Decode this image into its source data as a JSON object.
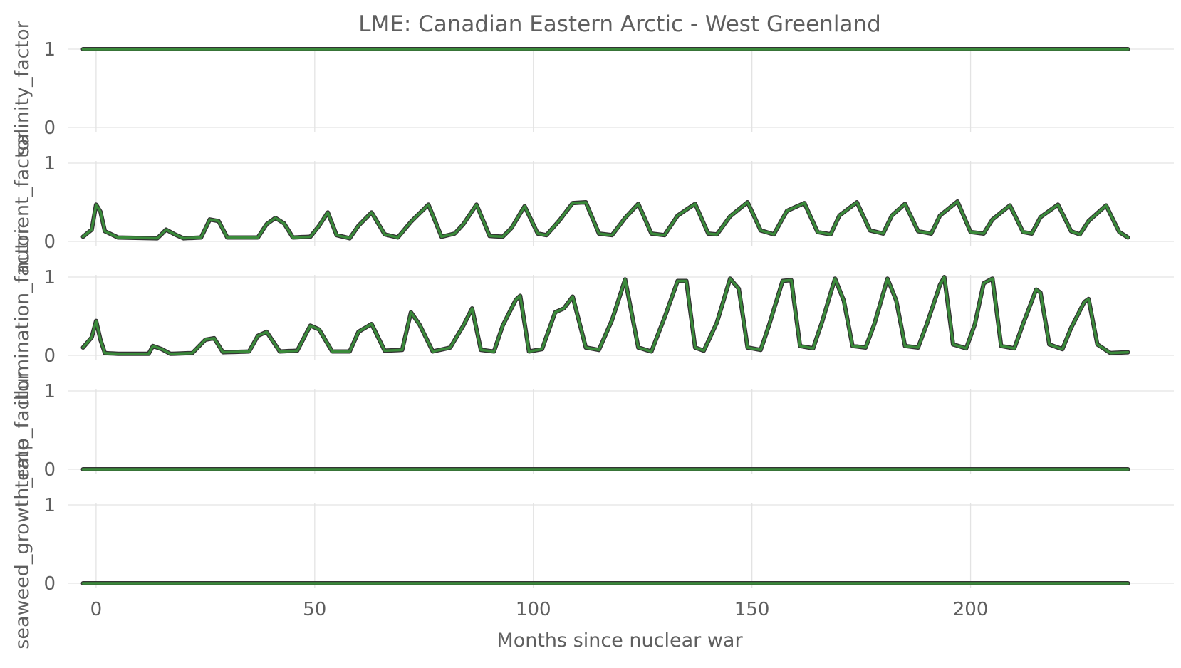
{
  "chart_data": {
    "type": "line",
    "title": "LME: Canadian Eastern Arctic - West Greenland",
    "xlabel": "Months since nuclear war",
    "x_start": -3,
    "x_end": 236,
    "xlim": [
      -6.5,
      246.5
    ],
    "x_ticks": [
      0,
      50,
      100,
      150,
      200
    ],
    "x_tick_labels": [
      "0",
      "50",
      "100",
      "150",
      "200"
    ],
    "grid": true,
    "line_color": "#3a8a3a",
    "outline_color": "#333333",
    "panels": [
      {
        "ylabel": "salinity_factor",
        "ylim": [
          0,
          1
        ],
        "y_ticks": [
          0,
          1
        ],
        "y_tick_labels": [
          "0",
          "1"
        ],
        "mode": "constant",
        "value": 1
      },
      {
        "ylabel": "nutrient_factor",
        "ylim": [
          0,
          1
        ],
        "y_ticks": [
          0,
          1
        ],
        "y_tick_labels": [
          "0",
          "1"
        ],
        "mode": "seasonal",
        "baseline": 0.03,
        "points": [
          [
            -3,
            0.06
          ],
          [
            -1,
            0.15
          ],
          [
            0,
            0.47
          ],
          [
            1,
            0.38
          ],
          [
            2,
            0.13
          ],
          [
            5,
            0.05
          ],
          [
            14,
            0.04
          ],
          [
            16,
            0.15
          ],
          [
            18,
            0.09
          ],
          [
            20,
            0.04
          ],
          [
            24,
            0.05
          ],
          [
            26,
            0.28
          ],
          [
            28,
            0.26
          ],
          [
            30,
            0.05
          ],
          [
            37,
            0.05
          ],
          [
            39,
            0.22
          ],
          [
            41,
            0.3
          ],
          [
            43,
            0.23
          ],
          [
            45,
            0.05
          ],
          [
            49,
            0.06
          ],
          [
            51,
            0.2
          ],
          [
            53,
            0.37
          ],
          [
            55,
            0.08
          ],
          [
            58,
            0.04
          ],
          [
            60,
            0.2
          ],
          [
            63,
            0.37
          ],
          [
            66,
            0.09
          ],
          [
            69,
            0.05
          ],
          [
            72,
            0.25
          ],
          [
            76,
            0.47
          ],
          [
            79,
            0.06
          ],
          [
            82,
            0.1
          ],
          [
            84,
            0.22
          ],
          [
            87,
            0.47
          ],
          [
            90,
            0.07
          ],
          [
            93,
            0.06
          ],
          [
            95,
            0.17
          ],
          [
            98,
            0.45
          ],
          [
            101,
            0.1
          ],
          [
            103,
            0.08
          ],
          [
            106,
            0.27
          ],
          [
            109,
            0.49
          ],
          [
            112,
            0.5
          ],
          [
            115,
            0.1
          ],
          [
            118,
            0.08
          ],
          [
            121,
            0.3
          ],
          [
            124,
            0.48
          ],
          [
            127,
            0.1
          ],
          [
            130,
            0.08
          ],
          [
            133,
            0.33
          ],
          [
            137,
            0.48
          ],
          [
            140,
            0.1
          ],
          [
            142,
            0.09
          ],
          [
            145,
            0.32
          ],
          [
            149,
            0.5
          ],
          [
            152,
            0.14
          ],
          [
            155,
            0.09
          ],
          [
            158,
            0.39
          ],
          [
            162,
            0.49
          ],
          [
            165,
            0.12
          ],
          [
            168,
            0.09
          ],
          [
            170,
            0.33
          ],
          [
            174,
            0.5
          ],
          [
            177,
            0.14
          ],
          [
            180,
            0.1
          ],
          [
            182,
            0.33
          ],
          [
            185,
            0.48
          ],
          [
            188,
            0.13
          ],
          [
            191,
            0.1
          ],
          [
            193,
            0.33
          ],
          [
            197,
            0.51
          ],
          [
            200,
            0.12
          ],
          [
            203,
            0.1
          ],
          [
            205,
            0.28
          ],
          [
            209,
            0.46
          ],
          [
            212,
            0.12
          ],
          [
            214,
            0.1
          ],
          [
            216,
            0.31
          ],
          [
            220,
            0.47
          ],
          [
            223,
            0.13
          ],
          [
            225,
            0.09
          ],
          [
            227,
            0.26
          ],
          [
            231,
            0.46
          ],
          [
            234,
            0.12
          ],
          [
            236,
            0.05
          ]
        ]
      },
      {
        "ylabel": "illumination_factor",
        "ylim": [
          0,
          1
        ],
        "y_ticks": [
          0,
          1
        ],
        "y_tick_labels": [
          "0",
          "1"
        ],
        "mode": "seasonal",
        "baseline": 0.01,
        "points": [
          [
            -3,
            0.1
          ],
          [
            -1,
            0.23
          ],
          [
            0,
            0.44
          ],
          [
            1,
            0.2
          ],
          [
            2,
            0.03
          ],
          [
            5,
            0.02
          ],
          [
            12,
            0.02
          ],
          [
            13,
            0.12
          ],
          [
            15,
            0.08
          ],
          [
            17,
            0.02
          ],
          [
            22,
            0.03
          ],
          [
            25,
            0.2
          ],
          [
            27,
            0.22
          ],
          [
            29,
            0.04
          ],
          [
            35,
            0.05
          ],
          [
            37,
            0.25
          ],
          [
            39,
            0.3
          ],
          [
            42,
            0.05
          ],
          [
            46,
            0.06
          ],
          [
            49,
            0.38
          ],
          [
            51,
            0.33
          ],
          [
            54,
            0.05
          ],
          [
            58,
            0.05
          ],
          [
            60,
            0.3
          ],
          [
            63,
            0.4
          ],
          [
            66,
            0.06
          ],
          [
            70,
            0.07
          ],
          [
            72,
            0.55
          ],
          [
            74,
            0.39
          ],
          [
            77,
            0.05
          ],
          [
            81,
            0.1
          ],
          [
            84,
            0.38
          ],
          [
            86,
            0.6
          ],
          [
            88,
            0.07
          ],
          [
            91,
            0.05
          ],
          [
            93,
            0.38
          ],
          [
            96,
            0.71
          ],
          [
            97,
            0.76
          ],
          [
            99,
            0.05
          ],
          [
            102,
            0.08
          ],
          [
            105,
            0.55
          ],
          [
            107,
            0.6
          ],
          [
            109,
            0.75
          ],
          [
            112,
            0.1
          ],
          [
            115,
            0.07
          ],
          [
            118,
            0.45
          ],
          [
            121,
            0.97
          ],
          [
            124,
            0.1
          ],
          [
            127,
            0.05
          ],
          [
            130,
            0.48
          ],
          [
            133,
            0.95
          ],
          [
            135,
            0.95
          ],
          [
            137,
            0.1
          ],
          [
            139,
            0.06
          ],
          [
            142,
            0.42
          ],
          [
            145,
            0.98
          ],
          [
            147,
            0.85
          ],
          [
            149,
            0.1
          ],
          [
            152,
            0.07
          ],
          [
            154,
            0.4
          ],
          [
            157,
            0.95
          ],
          [
            159,
            0.96
          ],
          [
            161,
            0.12
          ],
          [
            164,
            0.09
          ],
          [
            166,
            0.42
          ],
          [
            169,
            0.98
          ],
          [
            171,
            0.7
          ],
          [
            173,
            0.12
          ],
          [
            176,
            0.1
          ],
          [
            178,
            0.4
          ],
          [
            181,
            0.98
          ],
          [
            183,
            0.7
          ],
          [
            185,
            0.12
          ],
          [
            188,
            0.1
          ],
          [
            190,
            0.4
          ],
          [
            193,
            0.9
          ],
          [
            194,
            1.0
          ],
          [
            196,
            0.14
          ],
          [
            199,
            0.09
          ],
          [
            201,
            0.4
          ],
          [
            203,
            0.92
          ],
          [
            205,
            0.98
          ],
          [
            207,
            0.12
          ],
          [
            210,
            0.09
          ],
          [
            212,
            0.4
          ],
          [
            215,
            0.84
          ],
          [
            216,
            0.8
          ],
          [
            218,
            0.14
          ],
          [
            221,
            0.08
          ],
          [
            223,
            0.35
          ],
          [
            226,
            0.68
          ],
          [
            227,
            0.72
          ],
          [
            229,
            0.14
          ],
          [
            232,
            0.03
          ],
          [
            236,
            0.04
          ]
        ]
      },
      {
        "ylabel": "temp_factor",
        "ylim": [
          0,
          1
        ],
        "y_ticks": [
          0,
          1
        ],
        "y_tick_labels": [
          "0",
          "1"
        ],
        "mode": "constant",
        "value": 0
      },
      {
        "ylabel": "seaweed_growth_rate",
        "ylim": [
          0,
          1
        ],
        "y_ticks": [
          0,
          1
        ],
        "y_tick_labels": [
          "0",
          "1"
        ],
        "mode": "constant",
        "value": 0
      }
    ]
  }
}
